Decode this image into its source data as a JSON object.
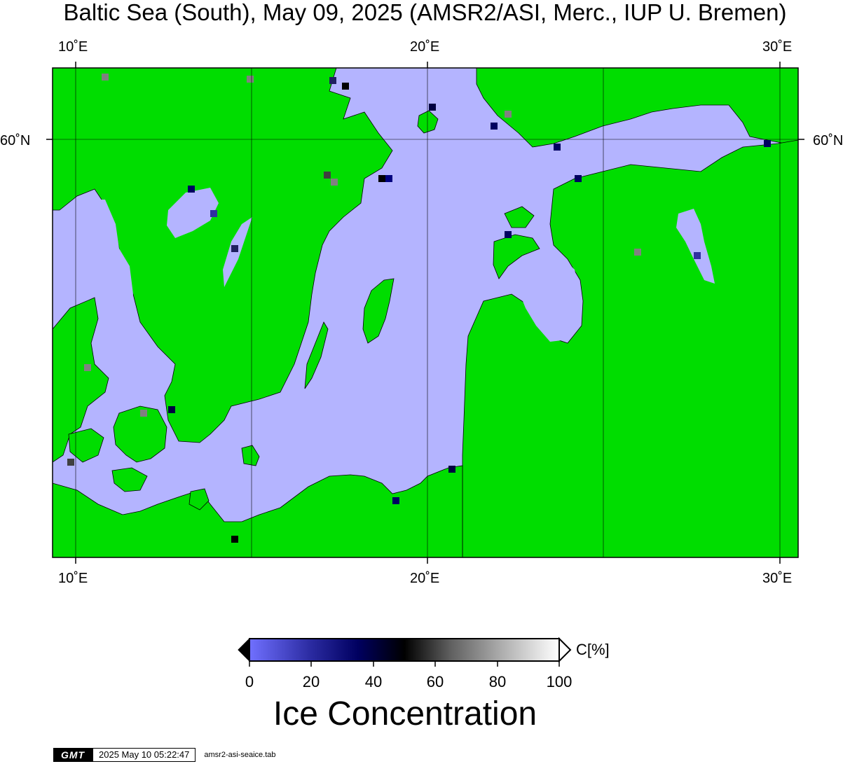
{
  "title": "Baltic Sea (South), May 09, 2025 (AMSR2/ASI, Merc., IUP U. Bremen)",
  "axes": {
    "top_ticks": [
      "10˚E",
      "20˚E",
      "30˚E"
    ],
    "bottom_ticks": [
      "10˚E",
      "20˚E",
      "30˚E"
    ],
    "left_ticks": [
      "60˚N"
    ],
    "right_ticks": [
      "60˚N"
    ]
  },
  "colors": {
    "land": "#00dd00",
    "water_low_ice": "#b4b4ff",
    "coastline": "#000000",
    "graticule": "#000000"
  },
  "colorbar": {
    "title": "Ice Concentration",
    "unit": "C[%]",
    "tick_labels": [
      "0",
      "20",
      "40",
      "60",
      "80",
      "100"
    ],
    "gradient_stops": [
      "#7070ff",
      "#2a2aa0",
      "#000060",
      "#000000",
      "#606060",
      "#b0b0b0",
      "#ffffff"
    ],
    "range": [
      0,
      100
    ]
  },
  "footer": {
    "logo_text": "GMT",
    "timestamp": "2025 May 10 05:22:47",
    "command": "amsr2-asi-seaice.tab"
  }
}
